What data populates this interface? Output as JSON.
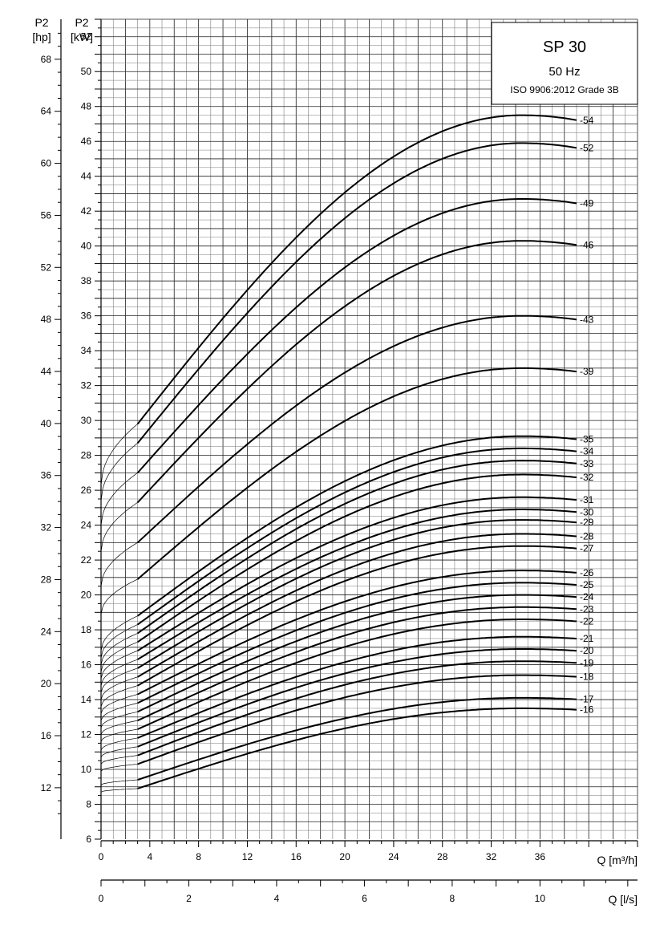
{
  "chart_data": {
    "type": "line",
    "title": "SP 30",
    "subtitle": "50 Hz",
    "standard": "ISO 9906:2012 Grade 3B",
    "y_left_hp": {
      "label_top": "P2",
      "label_unit": "[hp]",
      "ticks": [
        "12",
        "16",
        "20",
        "24",
        "28",
        "32",
        "36",
        "40",
        "44",
        "48",
        "52",
        "56",
        "60",
        "64",
        "68"
      ]
    },
    "y_kw": {
      "label_top": "P2",
      "label_unit": "[kW]",
      "range": [
        6,
        53
      ],
      "ticks": [
        "6",
        "8",
        "10",
        "12",
        "14",
        "16",
        "18",
        "20",
        "22",
        "24",
        "26",
        "28",
        "30",
        "32",
        "34",
        "36",
        "38",
        "40",
        "42",
        "44",
        "46",
        "48",
        "50",
        "52"
      ]
    },
    "x_m3h": {
      "label": "Q [m³/h]",
      "range": [
        0,
        44
      ],
      "ticks": [
        "0",
        "4",
        "8",
        "12",
        "16",
        "20",
        "24",
        "28",
        "32",
        "36"
      ]
    },
    "x_ls": {
      "label": "Q [l/s]",
      "ticks": [
        "0",
        "2",
        "4",
        "6",
        "8",
        "10"
      ]
    },
    "grid": true,
    "q_start": 3.0,
    "q_end": 39.0,
    "series": [
      {
        "name": "-54",
        "y0": 26.3,
        "ys": 29.8,
        "ym": 47.5
      },
      {
        "name": "-52",
        "y0": 25.4,
        "ys": 28.7,
        "ym": 45.9
      },
      {
        "name": "-49",
        "y0": 24.0,
        "ys": 27.0,
        "ym": 42.7
      },
      {
        "name": "-46",
        "y0": 22.5,
        "ys": 25.3,
        "ym": 40.3
      },
      {
        "name": "-43",
        "y0": 20.5,
        "ys": 23.0,
        "ym": 36.0
      },
      {
        "name": "-39",
        "y0": 18.9,
        "ys": 20.9,
        "ym": 33.0
      },
      {
        "name": "-35",
        "y0": 16.8,
        "ys": 18.8,
        "ym": 29.1
      },
      {
        "name": "-34",
        "y0": 16.4,
        "ys": 18.3,
        "ym": 28.4
      },
      {
        "name": "-33",
        "y0": 16.0,
        "ys": 17.8,
        "ym": 27.7
      },
      {
        "name": "-32",
        "y0": 15.6,
        "ys": 17.3,
        "ym": 26.9
      },
      {
        "name": "-31",
        "y0": 15.2,
        "ys": 16.8,
        "ym": 25.6
      },
      {
        "name": "-30",
        "y0": 14.8,
        "ys": 16.3,
        "ym": 24.9
      },
      {
        "name": "-29",
        "y0": 14.4,
        "ys": 15.8,
        "ym": 24.3
      },
      {
        "name": "-28",
        "y0": 14.0,
        "ys": 15.3,
        "ym": 23.5
      },
      {
        "name": "-27",
        "y0": 13.6,
        "ys": 14.8,
        "ym": 22.8
      },
      {
        "name": "-26",
        "y0": 13.2,
        "ys": 14.3,
        "ym": 21.4
      },
      {
        "name": "-25",
        "y0": 12.8,
        "ys": 13.8,
        "ym": 20.7
      },
      {
        "name": "-24",
        "y0": 12.4,
        "ys": 13.3,
        "ym": 20.0
      },
      {
        "name": "-23",
        "y0": 12.0,
        "ys": 12.8,
        "ym": 19.3
      },
      {
        "name": "-22",
        "y0": 11.6,
        "ys": 12.3,
        "ym": 18.6
      },
      {
        "name": "-21",
        "y0": 11.1,
        "ys": 11.8,
        "ym": 17.6
      },
      {
        "name": "-20",
        "y0": 10.7,
        "ys": 11.3,
        "ym": 16.9
      },
      {
        "name": "-19",
        "y0": 10.3,
        "ys": 10.8,
        "ym": 16.2
      },
      {
        "name": "-18",
        "y0": 9.9,
        "ys": 10.3,
        "ym": 15.4
      },
      {
        "name": "-17",
        "y0": 9.1,
        "ys": 9.4,
        "ym": 14.1
      },
      {
        "name": "-16",
        "y0": 8.7,
        "ys": 8.9,
        "ym": 13.5
      }
    ]
  }
}
